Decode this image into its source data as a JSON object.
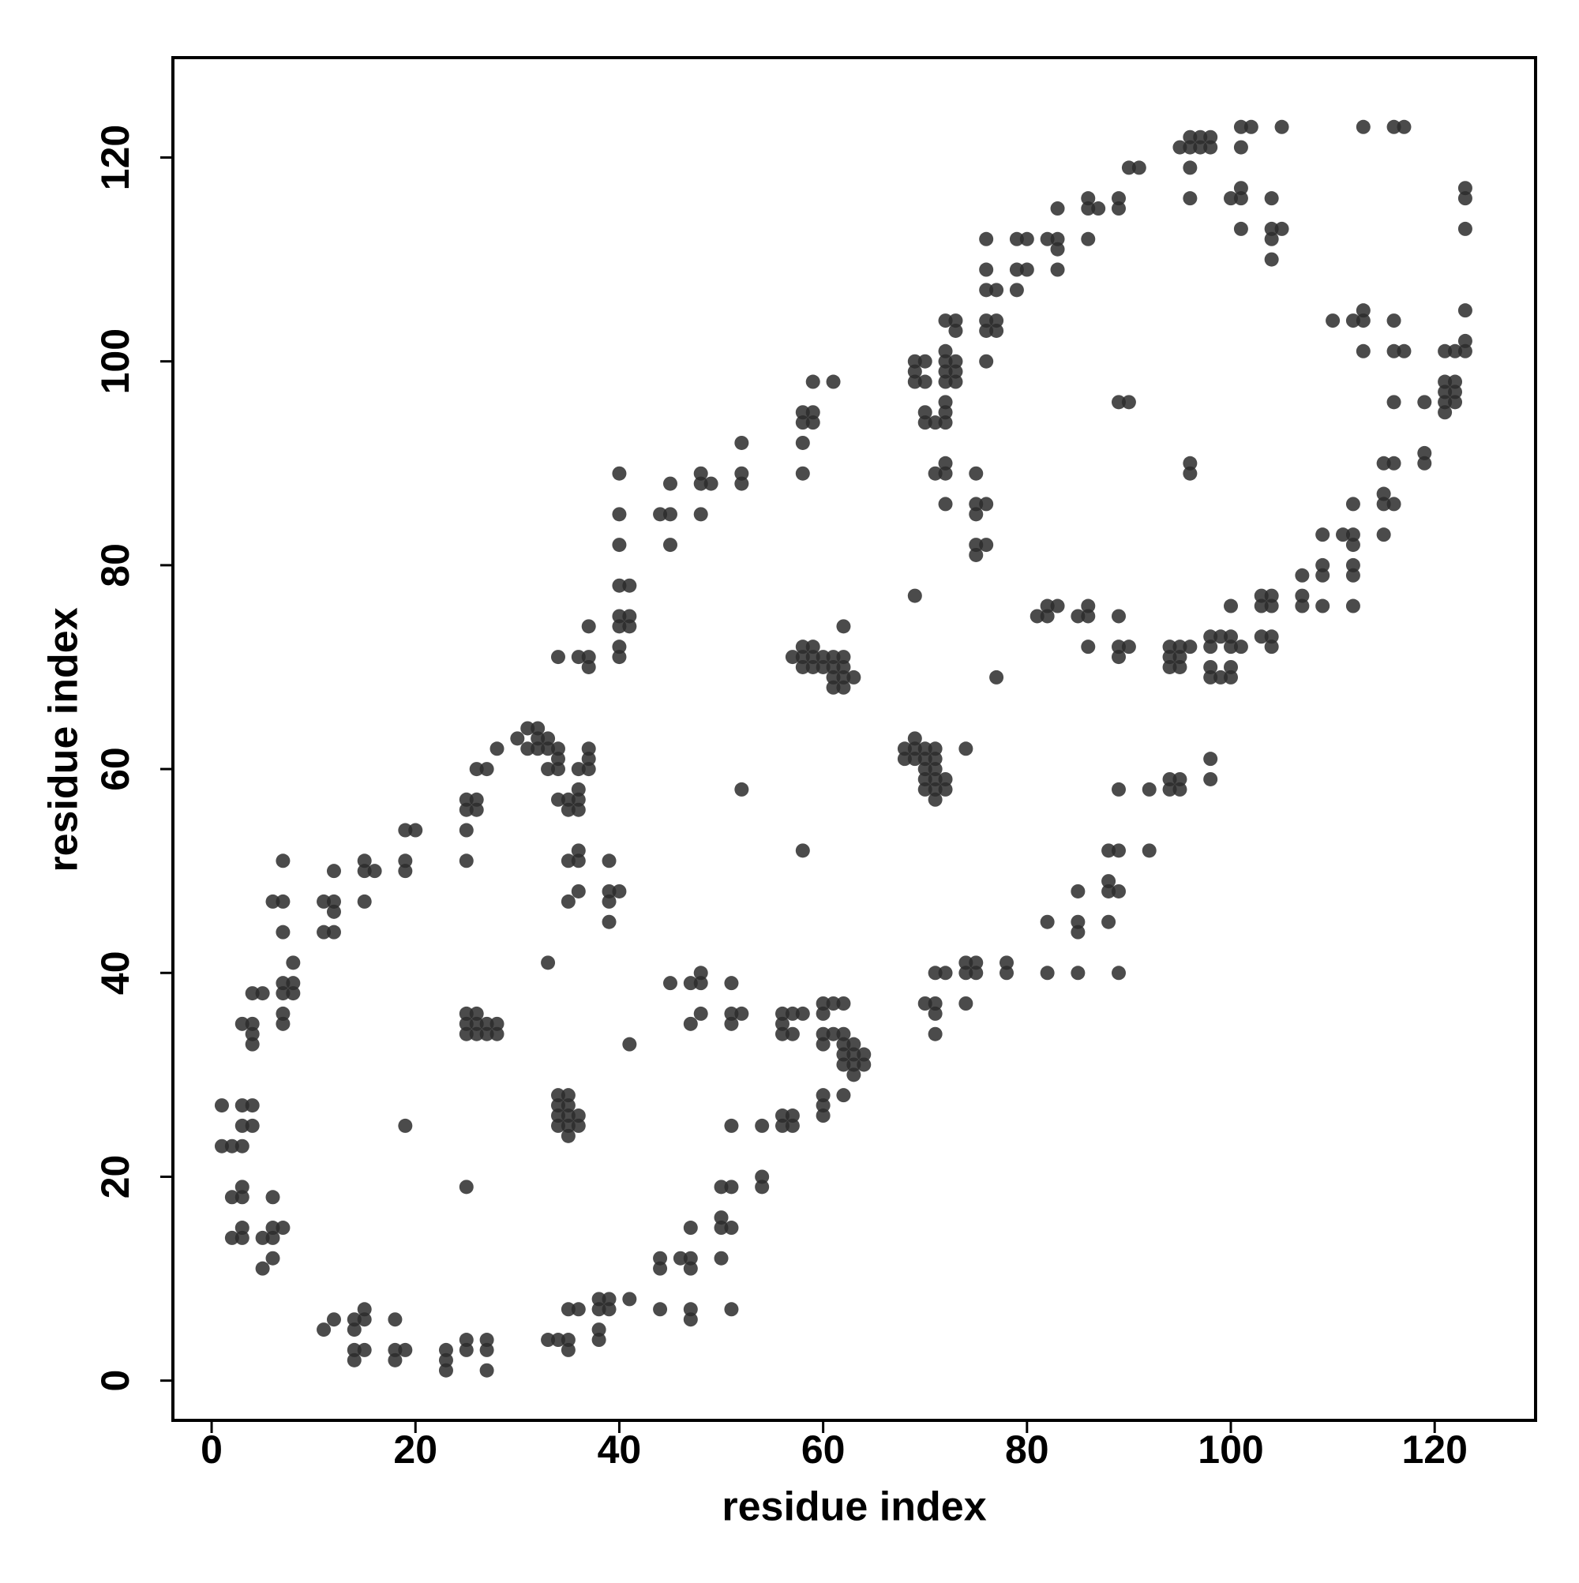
{
  "chart_data": {
    "type": "scatter",
    "xlabel": "residue index",
    "ylabel": "residue index",
    "color": "#2b2b2b",
    "xlim": [
      -3.8,
      129.9
    ],
    "ylim": [
      -3.9,
      129.8
    ],
    "xticks": [
      0,
      20,
      40,
      60,
      80,
      100,
      120
    ],
    "yticks": [
      0,
      20,
      40,
      60,
      80,
      100,
      120
    ],
    "grid": false,
    "x": [
      11,
      12,
      14,
      14,
      15,
      15,
      14,
      14,
      15,
      18,
      18,
      18,
      19,
      23,
      23,
      23,
      25,
      25,
      27,
      27,
      27,
      33,
      34,
      35,
      35,
      35,
      36,
      38,
      38,
      38,
      38,
      39,
      39,
      41,
      44,
      44,
      44,
      46,
      47,
      47,
      47,
      47,
      47,
      50,
      50,
      50,
      50,
      51,
      51,
      51,
      51,
      54,
      54,
      54,
      56,
      56,
      57,
      57,
      60,
      60,
      60,
      62,
      1,
      1,
      2,
      3,
      3,
      3,
      4,
      4,
      2,
      3,
      3,
      2,
      3,
      3,
      5,
      5,
      6,
      6,
      6,
      6,
      7,
      3,
      4,
      4,
      4,
      4,
      5,
      6,
      7,
      7,
      7,
      7,
      7,
      7,
      7,
      8,
      8,
      8,
      11,
      11,
      12,
      12,
      12,
      12,
      15,
      15,
      15,
      16,
      19,
      19,
      19,
      20,
      19,
      25,
      25,
      25,
      25,
      26,
      26,
      26,
      27,
      28,
      30,
      31,
      31,
      32,
      32,
      32,
      33,
      33,
      33,
      34,
      34,
      34,
      34,
      35,
      35,
      36,
      36,
      36,
      36,
      37,
      37,
      37,
      34,
      36,
      37,
      37,
      37,
      35,
      36,
      36,
      36,
      35,
      39,
      39,
      39,
      39,
      40,
      33,
      25,
      25,
      26,
      25,
      26,
      26,
      27,
      27,
      28,
      28,
      25,
      34,
      34,
      34,
      34,
      35,
      35,
      35,
      35,
      35,
      36,
      36,
      41,
      40,
      40,
      40,
      40,
      40,
      40,
      40,
      40,
      41,
      41,
      41,
      44,
      45,
      45,
      45,
      48,
      48,
      48,
      49,
      52,
      52,
      52,
      52,
      58,
      58,
      58,
      58,
      59,
      59,
      59,
      61,
      45,
      47,
      47,
      48,
      48,
      48,
      51,
      51,
      51,
      52,
      56,
      56,
      56,
      57,
      57,
      58,
      60,
      60,
      60,
      60,
      61,
      61,
      62,
      62,
      62,
      62,
      62,
      63,
      63,
      63,
      63,
      64,
      64,
      57,
      58,
      58,
      58,
      59,
      59,
      59,
      60,
      60,
      61,
      61,
      61,
      61,
      62,
      62,
      62,
      62,
      62,
      63,
      58,
      68,
      68,
      69,
      69,
      69,
      70,
      70,
      70,
      70,
      70,
      71,
      71,
      71,
      71,
      71,
      71,
      72,
      72,
      74,
      69,
      77,
      70,
      71,
      71,
      71,
      71,
      72,
      74,
      74,
      74,
      75,
      75,
      78,
      78,
      69,
      69,
      69,
      70,
      70,
      70,
      70,
      71,
      71,
      72,
      72,
      72,
      72,
      72,
      72,
      72,
      72,
      72,
      72,
      72,
      73,
      73,
      73,
      73,
      73,
      75,
      75,
      75,
      75,
      75,
      76,
      76,
      76,
      76,
      76,
      76,
      76,
      76,
      77,
      77,
      77,
      79,
      79,
      79,
      80,
      80,
      82,
      83,
      83,
      83,
      83,
      86,
      86,
      86,
      87,
      89,
      89,
      90,
      91,
      95,
      96,
      96,
      96,
      96,
      97,
      97,
      98,
      98,
      100,
      101,
      101,
      101,
      101,
      101,
      102,
      104,
      104,
      104,
      104,
      105,
      105,
      113,
      116,
      117,
      123,
      123,
      123,
      123,
      123,
      123,
      122,
      122,
      122,
      122,
      121,
      121,
      121,
      121,
      121,
      119,
      119,
      119,
      116,
      116,
      116,
      116,
      116,
      117,
      115,
      115,
      115,
      115,
      113,
      113,
      113,
      112,
      112,
      112,
      112,
      112,
      112,
      112,
      111,
      110,
      109,
      109,
      109,
      109,
      107,
      107,
      107,
      104,
      104,
      104,
      104,
      103,
      103,
      103,
      101,
      100,
      100,
      100,
      100,
      100,
      99,
      98,
      98,
      98,
      98,
      99,
      98,
      98,
      96,
      96,
      96,
      95,
      95,
      95,
      95,
      95,
      94,
      94,
      94,
      94,
      94,
      92,
      92,
      89,
      90,
      89,
      89,
      89,
      90,
      89,
      89,
      89,
      89,
      88,
      88,
      88,
      88,
      86,
      86,
      86,
      85,
      83,
      82,
      82,
      81,
      85,
      85,
      85,
      85,
      82,
      82
    ],
    "values": [
      5,
      6,
      6,
      5,
      6,
      7,
      3,
      2,
      3,
      6,
      3,
      2,
      3,
      3,
      2,
      1,
      4,
      3,
      4,
      3,
      1,
      4,
      4,
      4,
      3,
      7,
      7,
      8,
      7,
      5,
      4,
      8,
      7,
      8,
      12,
      11,
      7,
      12,
      15,
      12,
      11,
      7,
      6,
      12,
      15,
      16,
      19,
      19,
      15,
      7,
      25,
      25,
      20,
      19,
      25,
      26,
      26,
      25,
      26,
      28,
      27,
      28,
      27,
      23,
      23,
      27,
      25,
      23,
      27,
      25,
      18,
      18,
      19,
      14,
      14,
      15,
      14,
      11,
      14,
      15,
      12,
      18,
      15,
      35,
      35,
      38,
      34,
      33,
      38,
      47,
      47,
      51,
      44,
      39,
      38,
      36,
      35,
      39,
      38,
      41,
      47,
      44,
      47,
      46,
      44,
      50,
      50,
      51,
      47,
      50,
      54,
      51,
      50,
      54,
      25,
      57,
      56,
      54,
      51,
      57,
      56,
      60,
      60,
      62,
      63,
      64,
      62,
      64,
      63,
      62,
      63,
      62,
      60,
      62,
      61,
      60,
      57,
      56,
      57,
      58,
      57,
      56,
      60,
      62,
      61,
      60,
      71,
      71,
      71,
      74,
      70,
      51,
      52,
      51,
      48,
      47,
      51,
      48,
      47,
      45,
      48,
      41,
      35,
      36,
      36,
      34,
      35,
      34,
      35,
      34,
      35,
      34,
      19,
      28,
      27,
      26,
      25,
      28,
      27,
      26,
      25,
      24,
      26,
      25,
      33,
      89,
      85,
      82,
      78,
      75,
      74,
      72,
      71,
      78,
      75,
      74,
      85,
      88,
      85,
      82,
      89,
      88,
      85,
      88,
      92,
      89,
      88,
      58,
      95,
      94,
      92,
      89,
      95,
      94,
      98,
      98,
      39,
      39,
      35,
      40,
      39,
      36,
      39,
      36,
      35,
      36,
      36,
      35,
      34,
      36,
      34,
      36,
      37,
      36,
      34,
      33,
      37,
      34,
      37,
      34,
      33,
      32,
      31,
      33,
      32,
      31,
      30,
      32,
      31,
      71,
      72,
      71,
      70,
      72,
      71,
      70,
      71,
      70,
      71,
      70,
      69,
      68,
      74,
      71,
      70,
      69,
      68,
      69,
      52,
      62,
      61,
      63,
      62,
      61,
      62,
      61,
      60,
      59,
      58,
      62,
      61,
      60,
      59,
      58,
      57,
      59,
      58,
      62,
      77,
      69,
      37,
      37,
      36,
      34,
      40,
      40,
      41,
      40,
      37,
      41,
      40,
      41,
      40,
      100,
      99,
      98,
      100,
      98,
      95,
      94,
      94,
      89,
      104,
      101,
      100,
      99,
      98,
      96,
      95,
      94,
      90,
      89,
      86,
      104,
      103,
      100,
      99,
      98,
      89,
      86,
      85,
      82,
      81,
      86,
      82,
      112,
      109,
      107,
      104,
      103,
      100,
      107,
      104,
      103,
      112,
      109,
      107,
      112,
      109,
      112,
      115,
      112,
      111,
      109,
      116,
      115,
      112,
      115,
      116,
      115,
      119,
      119,
      121,
      122,
      121,
      119,
      116,
      122,
      121,
      122,
      121,
      116,
      123,
      121,
      117,
      116,
      113,
      123,
      116,
      113,
      112,
      110,
      113,
      123,
      123,
      123,
      123,
      117,
      116,
      113,
      105,
      102,
      101,
      101,
      98,
      97,
      96,
      101,
      98,
      97,
      96,
      95,
      96,
      91,
      90,
      104,
      101,
      96,
      90,
      86,
      101,
      90,
      87,
      86,
      83,
      105,
      104,
      101,
      104,
      86,
      83,
      82,
      80,
      79,
      76,
      83,
      104,
      83,
      80,
      79,
      76,
      79,
      77,
      76,
      77,
      76,
      73,
      72,
      77,
      76,
      73,
      72,
      76,
      73,
      72,
      70,
      69,
      73,
      73,
      72,
      70,
      69,
      69,
      61,
      59,
      90,
      89,
      72,
      72,
      71,
      70,
      59,
      58,
      72,
      71,
      70,
      59,
      58,
      58,
      52,
      96,
      96,
      75,
      72,
      71,
      72,
      58,
      52,
      48,
      40,
      52,
      49,
      48,
      45,
      76,
      75,
      72,
      75,
      76,
      76,
      75,
      75,
      48,
      45,
      44,
      40,
      45,
      40
    ]
  }
}
